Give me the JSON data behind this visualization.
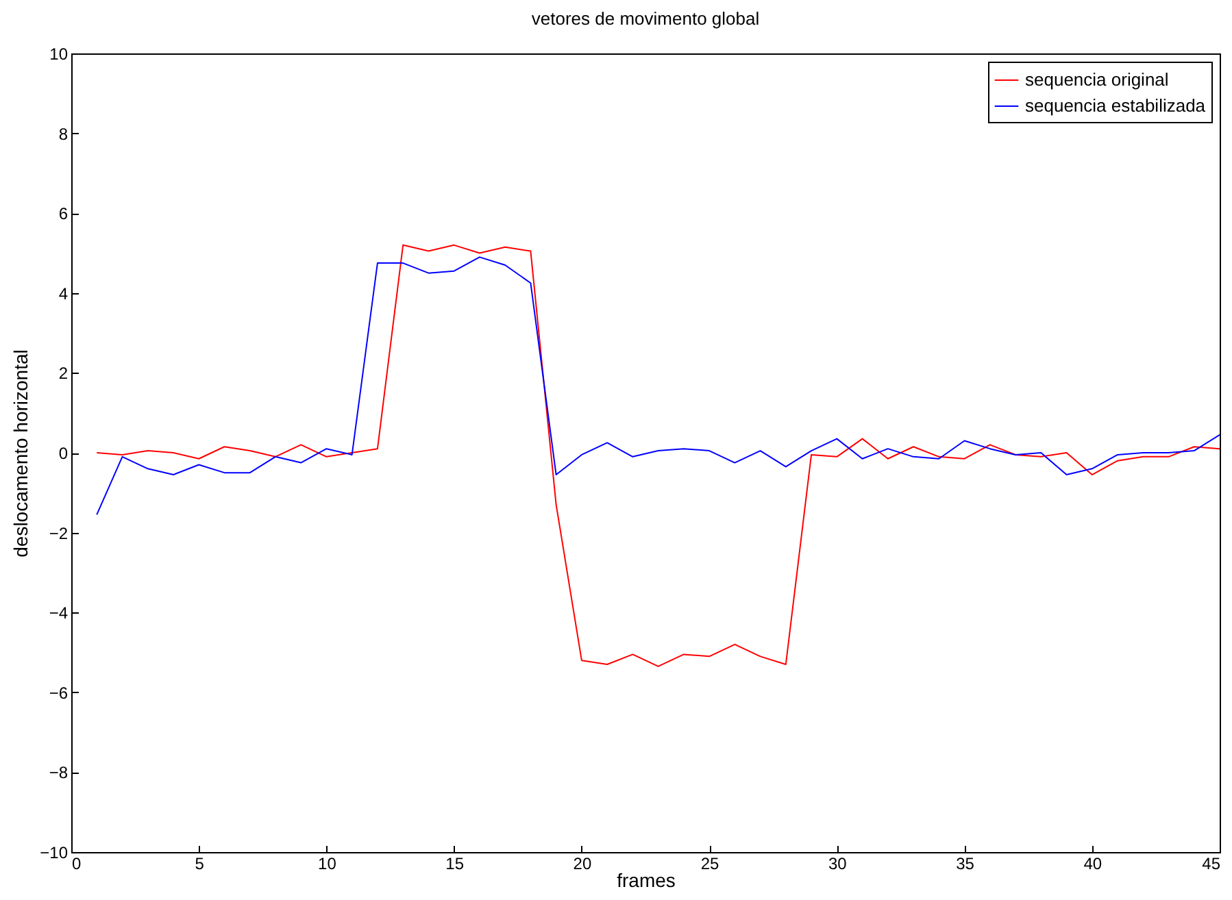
{
  "chart_data": {
    "type": "line",
    "title": "vetores de movimento global",
    "xlabel": "frames",
    "ylabel": "deslocamento horizontal",
    "x": [
      1,
      2,
      3,
      4,
      5,
      6,
      7,
      8,
      9,
      10,
      11,
      12,
      13,
      14,
      15,
      16,
      17,
      18,
      19,
      20,
      21,
      22,
      23,
      24,
      25,
      26,
      27,
      28,
      29,
      30,
      31,
      32,
      33,
      34,
      35,
      36,
      37,
      38,
      39,
      40,
      41,
      42,
      43,
      44,
      45
    ],
    "series": [
      {
        "name": "sequencia original",
        "color": "#ff0000",
        "values": [
          0,
          -0.05,
          0.05,
          0,
          -0.15,
          0.15,
          0.05,
          -0.1,
          0.2,
          -0.1,
          0,
          0.1,
          5.2,
          5.05,
          5.2,
          5.0,
          5.15,
          5.05,
          -1.3,
          -5.2,
          -5.3,
          -5.05,
          -5.35,
          -5.05,
          -5.1,
          -4.8,
          -5.1,
          -5.3,
          -0.05,
          -0.1,
          0.35,
          -0.15,
          0.15,
          -0.1,
          -0.15,
          0.2,
          -0.05,
          -0.1,
          0,
          -0.55,
          -0.2,
          -0.1,
          -0.1,
          0.15,
          0.1
        ]
      },
      {
        "name": "sequencia estabilizada",
        "color": "#0000ff",
        "values": [
          -1.55,
          -0.1,
          -0.4,
          -0.55,
          -0.3,
          -0.5,
          -0.5,
          -0.1,
          -0.25,
          0.1,
          -0.05,
          4.75,
          4.75,
          4.5,
          4.55,
          4.9,
          4.7,
          4.25,
          -0.55,
          -0.05,
          0.25,
          -0.1,
          0.05,
          0.1,
          0.05,
          -0.25,
          0.05,
          -0.35,
          0.05,
          0.35,
          -0.15,
          0.1,
          -0.1,
          -0.15,
          0.3,
          0.1,
          -0.05,
          0,
          -0.55,
          -0.4,
          -0.05,
          0,
          0,
          0.05,
          0.45
        ]
      }
    ],
    "xlim": [
      0,
      45
    ],
    "xticks": [
      0,
      5,
      10,
      15,
      20,
      25,
      30,
      35,
      40,
      45
    ],
    "ylim": [
      -10,
      10
    ],
    "yticks": [
      -10,
      -8,
      -6,
      -4,
      -2,
      0,
      2,
      4,
      6,
      8,
      10
    ],
    "legend": "top right"
  }
}
